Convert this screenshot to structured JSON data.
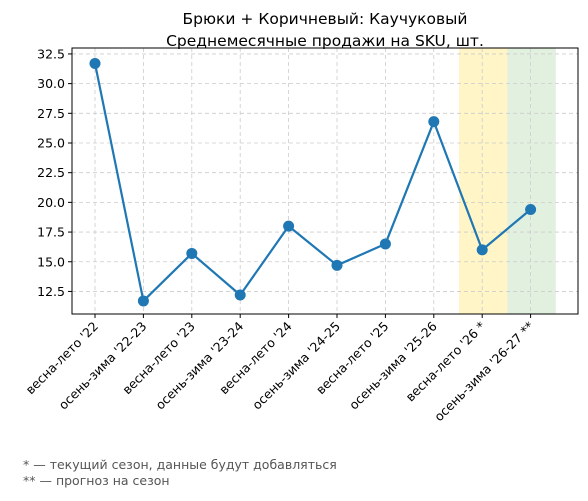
{
  "chart_data": {
    "type": "line",
    "title": "Брюки + Коричневый: Каучуковый",
    "subtitle": "Среднемесячные продажи на SKU, шт.",
    "xlabel": "",
    "ylabel": "",
    "categories": [
      "весна-лето '22",
      "осень-зима '22-23",
      "весна-лето '23",
      "осень-зима '23-24",
      "весна-лето '24",
      "осень-зима '24-25",
      "весна-лето '25",
      "осень-зима '25-26",
      "весна-лето '26 *",
      "осень-зима '26-27 **"
    ],
    "series": [
      {
        "values": [
          31.7,
          11.7,
          15.7,
          12.2,
          18.0,
          14.7,
          16.5,
          26.8,
          16.0,
          19.4
        ]
      }
    ],
    "ylim": [
      10.6,
      33.0
    ],
    "yticks": [
      "12.5",
      "15.0",
      "17.5",
      "20.0",
      "22.5",
      "25.0",
      "27.5",
      "30.0",
      "32.5"
    ],
    "grid": true,
    "highlights": [
      {
        "category": "весна-лето '26 *",
        "meaning": "current season",
        "color": "#fff2b3"
      },
      {
        "category": "осень-зима '26-27 **",
        "meaning": "forecast season",
        "color": "#d8ecd4"
      }
    ],
    "colors": {
      "line": "#1f77b4",
      "grid": "#cccccc"
    }
  },
  "footnotes": {
    "current": "* — текущий сезон, данные будут добавляться",
    "forecast": "** — прогноз на сезон"
  }
}
